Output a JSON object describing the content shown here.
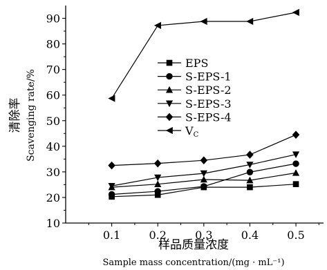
{
  "chart_data": {
    "type": "line",
    "xlabel_cn": "样品质量浓度",
    "xlabel_en": "Sample mass concentration/(mg · mL⁻¹)",
    "ylabel_cn": "清除率",
    "ylabel_en": "Scavenging rate/%",
    "xticks": [
      "0.1",
      "0.2",
      "0.3",
      "0.4",
      "0.5"
    ],
    "yticks": [
      "10",
      "20",
      "30",
      "40",
      "50",
      "60",
      "70",
      "80",
      "90"
    ],
    "x": [
      0.1,
      0.2,
      0.3,
      0.4,
      0.5
    ],
    "xlim": [
      0.0,
      0.56
    ],
    "ylim": [
      10,
      95
    ],
    "grid": false,
    "legend_position": "center",
    "series": [
      {
        "name": "EPS",
        "marker": "square",
        "values": [
          20.3,
          21.0,
          24.0,
          24.0,
          25.2
        ]
      },
      {
        "name": "S-EPS-1",
        "marker": "circle",
        "values": [
          21.2,
          22.4,
          24.3,
          29.9,
          33.2
        ]
      },
      {
        "name": "S-EPS-2",
        "marker": "triangle-up",
        "values": [
          24.0,
          25.2,
          27.0,
          26.7,
          29.6
        ]
      },
      {
        "name": "S-EPS-3",
        "marker": "triangle-down",
        "values": [
          24.5,
          27.8,
          29.4,
          32.8,
          36.8
        ]
      },
      {
        "name": "S-EPS-4",
        "marker": "diamond",
        "values": [
          32.5,
          33.3,
          34.5,
          36.7,
          44.5
        ]
      },
      {
        "name": "VC",
        "marker": "triangle-left",
        "values": [
          58.7,
          87.2,
          88.8,
          88.8,
          92.3
        ]
      }
    ]
  }
}
